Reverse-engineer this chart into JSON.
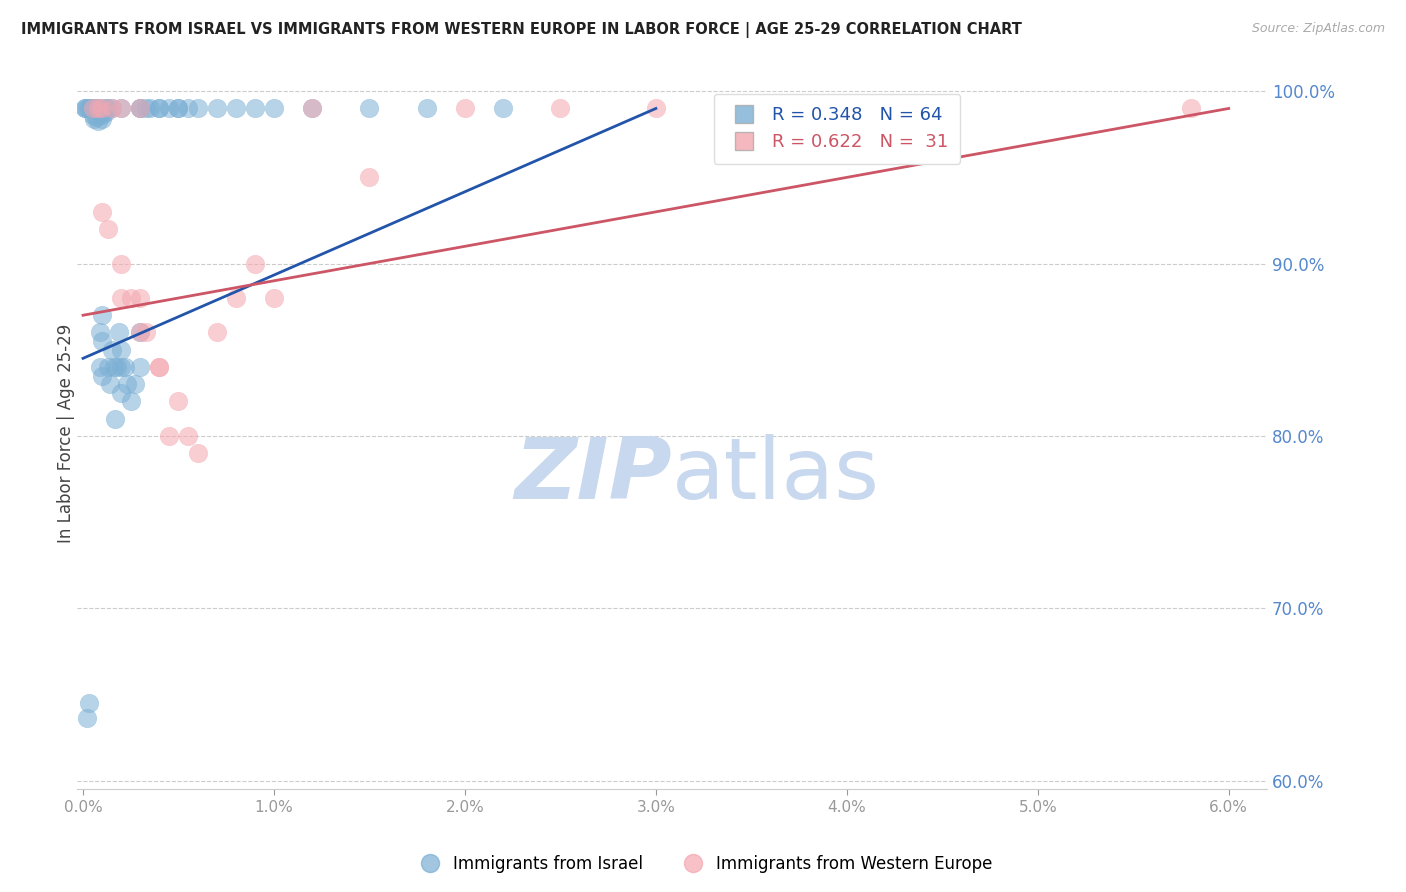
{
  "title": "IMMIGRANTS FROM ISRAEL VS IMMIGRANTS FROM WESTERN EUROPE IN LABOR FORCE | AGE 25-29 CORRELATION CHART",
  "source": "Source: ZipAtlas.com",
  "ylabel": "In Labor Force | Age 25-29",
  "blue_color": "#7BAFD4",
  "pink_color": "#F4A7B0",
  "blue_line_color": "#2255AA",
  "pink_line_color": "#CC5566",
  "right_axis_color": "#5588CC",
  "title_color": "#222222",
  "background_color": "#FFFFFF",
  "xlim": [
    -0.0003,
    0.062
  ],
  "ylim": [
    0.595,
    1.008
  ],
  "yticks_right": [
    0.6,
    0.7,
    0.8,
    0.9,
    1.0
  ],
  "xticks": [
    0.0,
    0.01,
    0.02,
    0.03,
    0.04,
    0.05,
    0.06
  ],
  "legend_entries": [
    "Immigrants from Israel",
    "Immigrants from Western Europe"
  ],
  "blue_r": "0.348",
  "blue_n": "64",
  "pink_r": "0.622",
  "pink_n": "31",
  "blue_x": [
    0.0002,
    0.0003,
    0.0004,
    0.0005,
    0.0005,
    0.0006,
    0.0006,
    0.0007,
    0.0007,
    0.0008,
    0.0008,
    0.0009,
    0.0009,
    0.001,
    0.001,
    0.001,
    0.001,
    0.001,
    0.001,
    0.001,
    0.0012,
    0.0012,
    0.0013,
    0.0013,
    0.0014,
    0.0015,
    0.0015,
    0.0016,
    0.0017,
    0.0018,
    0.0019,
    0.002,
    0.002,
    0.002,
    0.002,
    0.0022,
    0.0023,
    0.0025,
    0.0027,
    0.003,
    0.003,
    0.003,
    0.003,
    0.0033,
    0.0035,
    0.004,
    0.004,
    0.0045,
    0.005,
    0.005,
    0.0055,
    0.006,
    0.007,
    0.008,
    0.009,
    0.01,
    0.012,
    0.015,
    0.018,
    0.022,
    0.0001,
    0.0001,
    0.0002,
    0.0003
  ],
  "blue_y": [
    0.636,
    0.645,
    0.99,
    0.99,
    0.986,
    0.99,
    0.984,
    0.99,
    0.985,
    0.99,
    0.983,
    0.84,
    0.86,
    0.99,
    0.988,
    0.986,
    0.984,
    0.835,
    0.855,
    0.87,
    0.99,
    0.988,
    0.84,
    0.99,
    0.83,
    0.99,
    0.85,
    0.84,
    0.81,
    0.84,
    0.86,
    0.825,
    0.84,
    0.99,
    0.85,
    0.84,
    0.83,
    0.82,
    0.83,
    0.99,
    0.84,
    0.86,
    0.99,
    0.99,
    0.99,
    0.99,
    0.99,
    0.99,
    0.99,
    0.99,
    0.99,
    0.99,
    0.99,
    0.99,
    0.99,
    0.99,
    0.99,
    0.99,
    0.99,
    0.99,
    0.99,
    0.99,
    0.99,
    0.99
  ],
  "pink_x": [
    0.0005,
    0.001,
    0.0013,
    0.0015,
    0.002,
    0.002,
    0.002,
    0.0025,
    0.003,
    0.003,
    0.003,
    0.0033,
    0.004,
    0.004,
    0.0045,
    0.005,
    0.0055,
    0.006,
    0.007,
    0.008,
    0.009,
    0.01,
    0.012,
    0.015,
    0.02,
    0.025,
    0.03,
    0.04,
    0.058,
    0.001,
    0.0008
  ],
  "pink_y": [
    0.99,
    0.93,
    0.92,
    0.99,
    0.88,
    0.9,
    0.99,
    0.88,
    0.86,
    0.88,
    0.99,
    0.86,
    0.84,
    0.84,
    0.8,
    0.82,
    0.8,
    0.79,
    0.86,
    0.88,
    0.9,
    0.88,
    0.99,
    0.95,
    0.99,
    0.99,
    0.99,
    0.99,
    0.99,
    0.99,
    0.99
  ],
  "blue_trendline_x": [
    0.0,
    0.03
  ],
  "blue_trendline_y": [
    0.845,
    0.99
  ],
  "pink_trendline_x": [
    0.0,
    0.06
  ],
  "pink_trendline_y": [
    0.87,
    0.99
  ]
}
